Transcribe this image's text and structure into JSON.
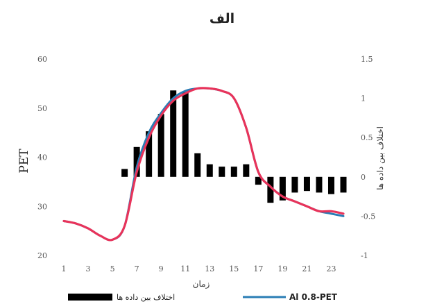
{
  "chart_data": {
    "type": "bar+line",
    "title": "الف",
    "xlabel": "زمان",
    "ylabel_left": "PET",
    "ylabel_right": "اختلاف بین داده ها",
    "x_ticks": [
      "1",
      "3",
      "5",
      "7",
      "9",
      "11",
      "13",
      "15",
      "17",
      "19",
      "21",
      "23"
    ],
    "y_left_ticks": [
      "20",
      "30",
      "40",
      "50",
      "60"
    ],
    "y_right_ticks": [
      "-1",
      "-0.5",
      "0",
      "0.5",
      "1",
      "1.5"
    ],
    "ylim_left": [
      20,
      60
    ],
    "ylim_right": [
      -1,
      1.5
    ],
    "x": [
      1,
      2,
      3,
      4,
      5,
      6,
      7,
      8,
      9,
      10,
      11,
      12,
      13,
      14,
      15,
      16,
      17,
      18,
      19,
      20,
      21,
      22,
      23,
      24
    ],
    "series": [
      {
        "name": "Al 0.8-PET",
        "kind": "line",
        "axis": "left",
        "color": "#2a7db5",
        "values": [
          27,
          26.5,
          25.5,
          24,
          23.2,
          26,
          38,
          45,
          49,
          52,
          53.5,
          54,
          54,
          53.5,
          52,
          46,
          37,
          34,
          32,
          31,
          30,
          29,
          28.5,
          28
        ]
      },
      {
        "name": "",
        "kind": "line",
        "axis": "left",
        "color": "#e8335a",
        "values": [
          27,
          26.5,
          25.5,
          24,
          23.2,
          26,
          37,
          44,
          48.5,
          51.5,
          53,
          54,
          54,
          53.5,
          52,
          46,
          37,
          34,
          32,
          31,
          30,
          29,
          29,
          28.5
        ]
      },
      {
        "name": "اختلاف بین داده ها",
        "kind": "bar",
        "axis": "right",
        "color": "#000000",
        "x": [
          6,
          7,
          8,
          9,
          10,
          11,
          12,
          13,
          14,
          15,
          16,
          17,
          18,
          19,
          20,
          21,
          22,
          23,
          24
        ],
        "values": [
          0.1,
          0.38,
          0.58,
          0.8,
          1.1,
          1.08,
          0.3,
          0.16,
          0.13,
          0.13,
          0.16,
          -0.1,
          -0.33,
          -0.3,
          -0.2,
          -0.18,
          -0.2,
          -0.22,
          -0.2
        ]
      }
    ],
    "legend": {
      "position": "bottom",
      "entries": [
        {
          "label": "اختلاف بین داده ها",
          "kind": "bar",
          "color": "#000000"
        },
        {
          "label": "Al 0.8-PET",
          "kind": "line",
          "color": "#2a7db5"
        }
      ]
    }
  }
}
